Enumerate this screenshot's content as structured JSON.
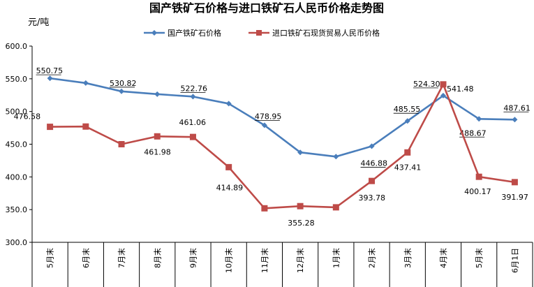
{
  "chart_data": {
    "type": "line",
    "title": "国产铁矿石价格与进口铁矿石人民币价格走势图",
    "ylabel": "元/吨",
    "xlabel": "",
    "ylim": [
      300,
      600
    ],
    "ytick_step": 50,
    "yticks": [
      "300.0",
      "350.0",
      "400.0",
      "450.0",
      "500.0",
      "550.0",
      "600.0"
    ],
    "grid": false,
    "legend_position": "top",
    "categories": [
      "5月末",
      "6月末",
      "7月末",
      "8月末",
      "9月末",
      "10月末",
      "11月末",
      "12月末",
      "1月末",
      "2月末",
      "3月末",
      "4月末",
      "5月末",
      "6月1日"
    ],
    "series": [
      {
        "name": "国产铁矿石价格",
        "color": "#4A7EBB",
        "marker": "diamond",
        "values": [
          550.75,
          543.5,
          530.82,
          526.5,
          522.76,
          512.0,
          478.95,
          437.5,
          431.0,
          446.88,
          485.55,
          524.3,
          488.67,
          487.61
        ],
        "labels": [
          "550.75",
          "",
          "530.82",
          "",
          "522.76",
          "",
          "478.95",
          "",
          "",
          "446.88",
          "485.55",
          "524.30",
          "488.67",
          "487.61"
        ]
      },
      {
        "name": "进口铁矿石现货贸易人民币价格",
        "color": "#BE4B48",
        "marker": "square",
        "values": [
          476.58,
          477.0,
          450.0,
          461.98,
          461.06,
          414.89,
          352.0,
          355.28,
          353.5,
          393.78,
          437.41,
          541.48,
          400.17,
          391.97
        ],
        "labels": [
          "476.58",
          "",
          "",
          "461.98",
          "461.06",
          "414.89",
          "",
          "355.28",
          "",
          "393.78",
          "437.41",
          "541.48",
          "400.17",
          "391.97"
        ]
      }
    ]
  }
}
